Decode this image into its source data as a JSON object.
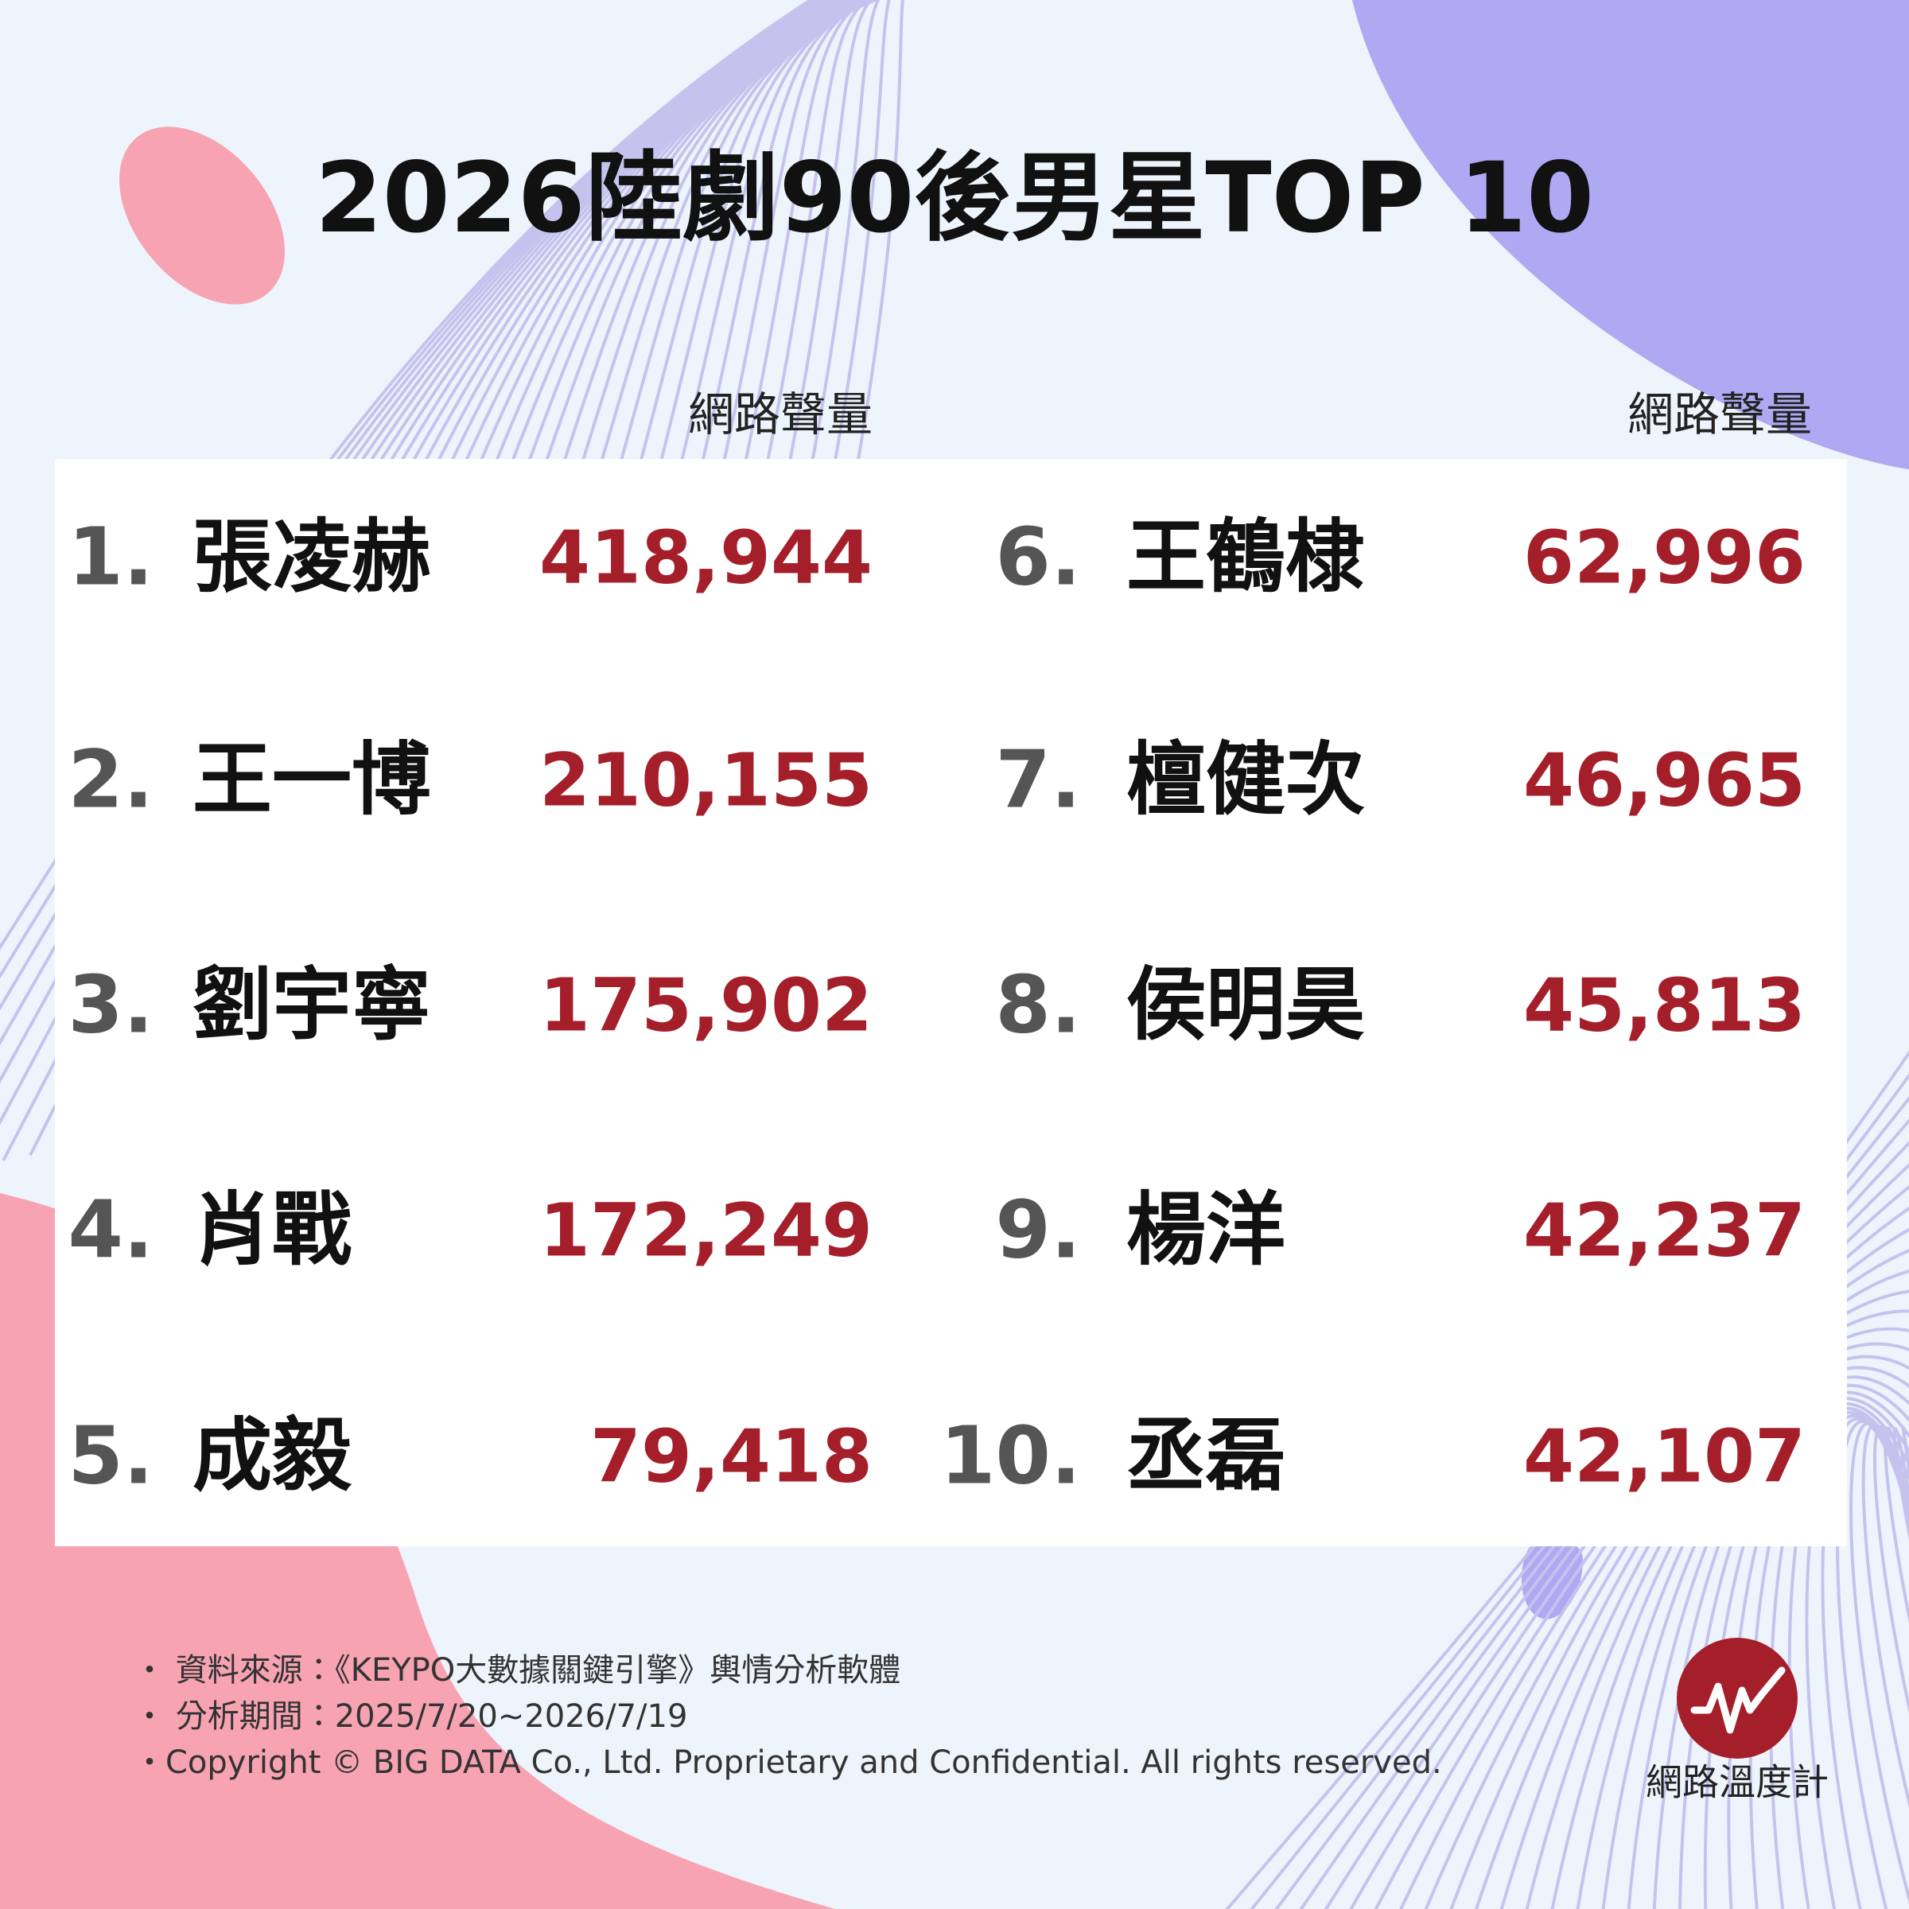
{
  "header": {
    "title": "2026陸劇90後男星TOP 10"
  },
  "column_headers": [
    "網路聲量",
    "網路聲量"
  ],
  "rows": [
    {
      "rank": "1.",
      "name": "張凌赫",
      "value": "418,944"
    },
    {
      "rank": "2.",
      "name": "王一博",
      "value": "210,155"
    },
    {
      "rank": "3.",
      "name": "劉宇寧",
      "value": "175,902"
    },
    {
      "rank": "4.",
      "name": "肖戰",
      "value": "172,249"
    },
    {
      "rank": "5.",
      "name": "成毅",
      "value": "79,418"
    },
    {
      "rank": "6.",
      "name": "王鶴棣",
      "value": "62,996"
    },
    {
      "rank": "7.",
      "name": "檀健次",
      "value": "46,965"
    },
    {
      "rank": "8.",
      "name": "侯明昊",
      "value": "45,813"
    },
    {
      "rank": "9.",
      "name": "楊洋",
      "value": "42,237"
    },
    {
      "rank": "10.",
      "name": "丞磊",
      "value": "42,107"
    }
  ],
  "footer": [
    "・ 資料來源：《KEYPO大數據關鍵引擎》輿情分析軟體",
    "・ 分析期間：2025/7/20~2026/7/19",
    "・Copyright © BIG DATA Co., Ltd. Proprietary and Confidential. All rights reserved."
  ],
  "logo": {
    "label": "網路溫度計"
  }
}
